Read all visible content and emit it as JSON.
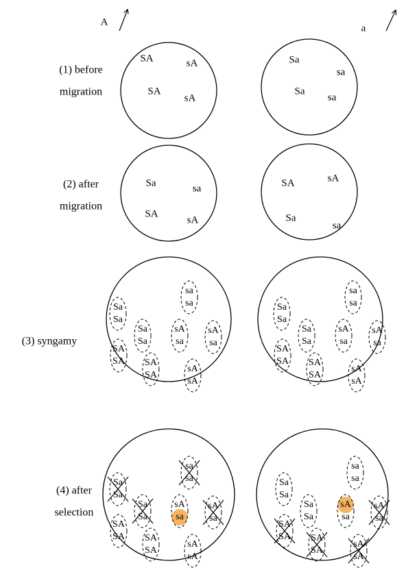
{
  "markers": {
    "left": "A",
    "right": "a"
  },
  "rows": [
    {
      "label": [
        "(1) before",
        "migration"
      ],
      "circles": [
        {
          "genotypes": [
            {
              "text": "SA",
              "color": "#000000"
            },
            {
              "text": "sA",
              "color": "#000000"
            },
            {
              "text": "SA",
              "color": "#000000"
            },
            {
              "text": "sA",
              "color": "#000000"
            }
          ]
        },
        {
          "genotypes": [
            {
              "text": "Sa",
              "color": "#000000"
            },
            {
              "text": "sa",
              "color": "#000000"
            },
            {
              "text": "Sa",
              "color": "#000000"
            },
            {
              "text": "sa",
              "color": "#000000"
            }
          ]
        }
      ]
    },
    {
      "label": [
        "(2) after",
        "migration"
      ],
      "circles": [
        {
          "genotypes": [
            {
              "text": "Sa",
              "color": "#d6283c"
            },
            {
              "text": "sa",
              "color": "#d6283c"
            },
            {
              "text": "SA",
              "color": "#000000"
            },
            {
              "text": "sA",
              "color": "#000000"
            }
          ]
        },
        {
          "genotypes": [
            {
              "text": "SA",
              "color": "#d6283c"
            },
            {
              "text": "sA",
              "color": "#d6283c"
            },
            {
              "text": "Sa",
              "color": "#000000"
            },
            {
              "text": "sa",
              "color": "#000000"
            }
          ]
        }
      ]
    },
    {
      "label": [
        "(3) syngamy"
      ],
      "circles": [
        {
          "pairs": [
            {
              "top": "Sa",
              "bottom": "Sa"
            },
            {
              "top": "sa",
              "bottom": "sa"
            },
            {
              "top": "Sa",
              "bottom": "Sa"
            },
            {
              "top": "sA",
              "bottom": "sa"
            },
            {
              "top": "sA",
              "bottom": "sa"
            },
            {
              "top": "SA",
              "bottom": "SA"
            },
            {
              "top": "SA",
              "bottom": "SA"
            },
            {
              "top": "sA",
              "bottom": "sA"
            }
          ]
        },
        {
          "pairs": [
            {
              "top": "Sa",
              "bottom": "Sa"
            },
            {
              "top": "sa",
              "bottom": "sa"
            },
            {
              "top": "Sa",
              "bottom": "Sa"
            },
            {
              "top": "sA",
              "bottom": "sa"
            },
            {
              "top": "sA",
              "bottom": "sa"
            },
            {
              "top": "SA",
              "bottom": "SA"
            },
            {
              "top": "SA",
              "bottom": "SA"
            },
            {
              "top": "sA",
              "bottom": "sA"
            }
          ]
        }
      ]
    },
    {
      "label": [
        "(4) after",
        "selection"
      ],
      "circles": [
        {
          "pairs": [
            {
              "top": "Sa",
              "bottom": "Sa",
              "crossed": true
            },
            {
              "top": "sa",
              "bottom": "sa",
              "crossed": true
            },
            {
              "top": "Sa",
              "bottom": "Sa",
              "crossed": true
            },
            {
              "top": "sA",
              "bottom": "sa",
              "marked": "bottom"
            },
            {
              "top": "sA",
              "bottom": "sa",
              "crossed": true
            },
            {
              "top": "SA",
              "bottom": "SA"
            },
            {
              "top": "SA",
              "bottom": "SA"
            },
            {
              "top": "sA",
              "bottom": "sA"
            }
          ]
        },
        {
          "pairs": [
            {
              "top": "Sa",
              "bottom": "Sa"
            },
            {
              "top": "sa",
              "bottom": "sa"
            },
            {
              "top": "Sa",
              "bottom": "Sa"
            },
            {
              "top": "sA",
              "bottom": "sa",
              "marked": "top"
            },
            {
              "top": "sA",
              "bottom": "sa",
              "crossed": true
            },
            {
              "top": "SA",
              "bottom": "SA",
              "crossed": true
            },
            {
              "top": "SA",
              "bottom": "SA",
              "crossed": true
            },
            {
              "top": "sA",
              "bottom": "sA",
              "crossed": true
            }
          ]
        }
      ]
    }
  ]
}
